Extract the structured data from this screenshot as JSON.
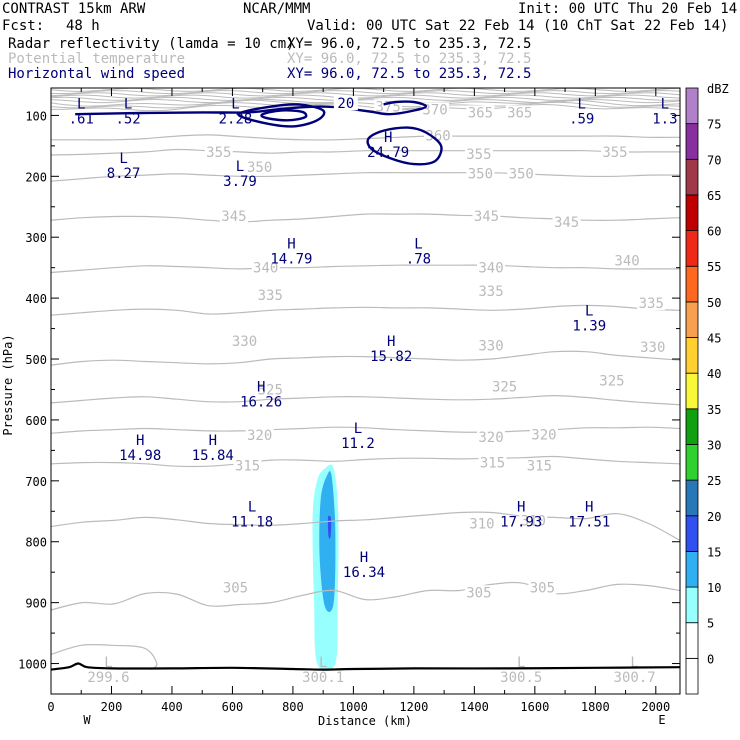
{
  "header": {
    "model": "CONTRAST 15km ARW",
    "org": "NCAR/MMM",
    "init": "Init: 00 UTC Thu 20 Feb 14",
    "fcst_label": "Fcst:",
    "fcst_value": "48 h",
    "valid": "Valid: 00 UTC Sat 22 Feb 14 (10 ChT Sat 22 Feb 14)",
    "line1_name": "Radar reflectivity (lamda = 10 cm)",
    "line1_xy": "XY=  96.0, 72.5 to 235.3, 72.5",
    "line2_name": "Potential temperature",
    "line2_xy": "XY=  96.0, 72.5 to 235.3, 72.5",
    "line3_name": "Horizontal wind speed",
    "line3_xy": "XY=  96.0, 72.5 to 235.3, 72.5",
    "colors": {
      "line1": "#000000",
      "line2": "#bbbbbb",
      "line3": "#00007a"
    }
  },
  "chart_data": {
    "type": "cross-section",
    "xlabel": "Distance (km)",
    "ylabel": "Pressure (hPa)",
    "xlim": [
      0,
      2080
    ],
    "ylim": [
      1050,
      55
    ],
    "x_ticks": [
      0,
      200,
      400,
      600,
      800,
      1000,
      1200,
      1400,
      1600,
      1800,
      2000
    ],
    "y_ticks": [
      100,
      200,
      300,
      400,
      500,
      600,
      700,
      800,
      900,
      1000
    ],
    "west_label": "W",
    "east_label": "E",
    "colorbar": {
      "unit": "dBZ",
      "levels": [
        "0",
        "5",
        "10",
        "15",
        "20",
        "25",
        "30",
        "35",
        "40",
        "45",
        "50",
        "55",
        "60",
        "65",
        "70",
        "75"
      ],
      "colors": [
        "#ffffff",
        "#98ffff",
        "#30b0f0",
        "#3050f0",
        "#2878b8",
        "#30d030",
        "#10a010",
        "#f8f838",
        "#ffd030",
        "#f8a050",
        "#ff6820",
        "#f02818",
        "#c00000",
        "#a03848",
        "#8830a0",
        "#b080c8"
      ]
    },
    "theta_contours": [
      {
        "value": 305,
        "p": [
          912,
          900,
          902,
          885,
          886,
          905,
          903,
          900,
          888,
          880,
          895,
          890,
          880,
          880,
          870,
          868,
          885,
          880,
          870,
          872,
          880
        ]
      },
      {
        "value": 310,
        "p": [
          775,
          768,
          765,
          760,
          764,
          770,
          772,
          773,
          770,
          766,
          764,
          760,
          756,
          752,
          752,
          758,
          760,
          762,
          754,
          770,
          798
        ]
      },
      {
        "value": 315,
        "p": [
          672,
          670,
          670,
          672,
          676,
          676,
          672,
          666,
          666,
          668,
          665,
          663,
          663,
          664,
          663,
          662,
          660,
          664,
          668,
          670,
          672
        ]
      },
      {
        "value": 320,
        "p": [
          622,
          618,
          616,
          614,
          616,
          618,
          618,
          616,
          614,
          612,
          613,
          616,
          618,
          620,
          620,
          618,
          616,
          613,
          613,
          612,
          614
        ]
      },
      {
        "value": 325,
        "p": [
          572,
          568,
          564,
          562,
          566,
          570,
          570,
          566,
          564,
          562,
          562,
          564,
          566,
          567,
          566,
          563,
          560,
          563,
          568,
          572,
          575
        ]
      },
      {
        "value": 330,
        "p": [
          510,
          504,
          502,
          504,
          506,
          508,
          506,
          500,
          498,
          496,
          496,
          498,
          500,
          502,
          500,
          494,
          488,
          488,
          494,
          498,
          502
        ]
      },
      {
        "value": 335,
        "p": [
          428,
          424,
          420,
          418,
          420,
          426,
          424,
          420,
          418,
          416,
          415,
          416,
          416,
          418,
          420,
          418,
          414,
          412,
          414,
          418,
          420
        ]
      },
      {
        "value": 340,
        "p": [
          358,
          354,
          350,
          347,
          348,
          350,
          352,
          350,
          350,
          348,
          347,
          346,
          346,
          346,
          346,
          348,
          350,
          350,
          352,
          352,
          352
        ]
      },
      {
        "value": 345,
        "p": [
          272,
          268,
          266,
          266,
          268,
          272,
          275,
          272,
          270,
          266,
          262,
          262,
          262,
          264,
          265,
          268,
          270,
          272,
          272,
          270,
          268
        ]
      },
      {
        "value": 350,
        "p": [
          208,
          204,
          200,
          198,
          196,
          198,
          200,
          200,
          198,
          196,
          194,
          194,
          194,
          194,
          194,
          196,
          198,
          200,
          200,
          198,
          198
        ]
      },
      {
        "value": 355,
        "p": [
          165,
          164,
          162,
          160,
          156,
          158,
          160,
          162,
          160,
          160,
          158,
          158,
          158,
          158,
          158,
          158,
          158,
          158,
          160,
          160,
          160
        ]
      },
      {
        "value": 360,
        "p": [
          140,
          140,
          140,
          138,
          134,
          132,
          135,
          138,
          140,
          140,
          138,
          136,
          134,
          134,
          134,
          134,
          134,
          134,
          134,
          136,
          136
        ]
      }
    ],
    "theta_labels": [
      {
        "v": "375",
        "x": 1115,
        "p": 85
      },
      {
        "v": "370",
        "x": 1270,
        "p": 90
      },
      {
        "v": "365",
        "x": 1420,
        "p": 95
      },
      {
        "v": "365",
        "x": 1550,
        "p": 95
      },
      {
        "v": "360",
        "x": 1280,
        "p": 133
      },
      {
        "v": "355",
        "x": 555,
        "p": 160
      },
      {
        "v": "355",
        "x": 1415,
        "p": 163
      },
      {
        "v": "355",
        "x": 1865,
        "p": 160
      },
      {
        "v": "350",
        "x": 690,
        "p": 185
      },
      {
        "v": "350",
        "x": 1420,
        "p": 195
      },
      {
        "v": "350",
        "x": 1555,
        "p": 195
      },
      {
        "v": "345",
        "x": 605,
        "p": 265
      },
      {
        "v": "345",
        "x": 1440,
        "p": 265
      },
      {
        "v": "345",
        "x": 1705,
        "p": 275
      },
      {
        "v": "340",
        "x": 710,
        "p": 350
      },
      {
        "v": "340",
        "x": 1455,
        "p": 350
      },
      {
        "v": "340",
        "x": 1905,
        "p": 338
      },
      {
        "v": "335",
        "x": 725,
        "p": 395
      },
      {
        "v": "335",
        "x": 1455,
        "p": 388
      },
      {
        "v": "335",
        "x": 1985,
        "p": 408
      },
      {
        "v": "330",
        "x": 640,
        "p": 470
      },
      {
        "v": "330",
        "x": 1455,
        "p": 478
      },
      {
        "v": "330",
        "x": 1990,
        "p": 480
      },
      {
        "v": "325",
        "x": 725,
        "p": 550
      },
      {
        "v": "325",
        "x": 1500,
        "p": 545
      },
      {
        "v": "325",
        "x": 1855,
        "p": 535
      },
      {
        "v": "320",
        "x": 690,
        "p": 625
      },
      {
        "v": "320",
        "x": 1455,
        "p": 628
      },
      {
        "v": "320",
        "x": 1630,
        "p": 624
      },
      {
        "v": "315",
        "x": 650,
        "p": 675
      },
      {
        "v": "315",
        "x": 1460,
        "p": 670
      },
      {
        "v": "315",
        "x": 1615,
        "p": 675
      },
      {
        "v": "310",
        "x": 1425,
        "p": 770
      },
      {
        "v": "310",
        "x": 1595,
        "p": 765
      },
      {
        "v": "305",
        "x": 610,
        "p": 875
      },
      {
        "v": "305",
        "x": 1415,
        "p": 883
      },
      {
        "v": "305",
        "x": 1625,
        "p": 875
      }
    ],
    "wind_contour_labels": [
      {
        "v": "20",
        "x": 975,
        "p": 80
      }
    ],
    "wind_extrema": [
      {
        "type": "L",
        "value": ".61",
        "x": 100,
        "p": 95
      },
      {
        "type": "L",
        "value": ".52",
        "x": 255,
        "p": 95
      },
      {
        "type": "L",
        "value": "2.28",
        "x": 610,
        "p": 95
      },
      {
        "type": "L",
        "value": ".59",
        "x": 1755,
        "p": 95
      },
      {
        "type": "L",
        "value": "1.3",
        "x": 2030,
        "p": 95
      },
      {
        "type": "H",
        "value": "24.79",
        "x": 1115,
        "p": 150
      },
      {
        "type": "L",
        "value": "8.27",
        "x": 240,
        "p": 185
      },
      {
        "type": "L",
        "value": "3.79",
        "x": 625,
        "p": 198
      },
      {
        "type": "H",
        "value": "14.79",
        "x": 795,
        "p": 325
      },
      {
        "type": "L",
        "value": ".78",
        "x": 1215,
        "p": 325
      },
      {
        "type": "L",
        "value": "1.39",
        "x": 1780,
        "p": 435
      },
      {
        "type": "H",
        "value": "15.82",
        "x": 1125,
        "p": 485
      },
      {
        "type": "H",
        "value": "16.26",
        "x": 695,
        "p": 560
      },
      {
        "type": "L",
        "value": "11.2",
        "x": 1015,
        "p": 628
      },
      {
        "type": "H",
        "value": "14.98",
        "x": 295,
        "p": 648
      },
      {
        "type": "H",
        "value": "15.84",
        "x": 535,
        "p": 648
      },
      {
        "type": "L",
        "value": "11.18",
        "x": 665,
        "p": 757
      },
      {
        "type": "H",
        "value": "17.93",
        "x": 1555,
        "p": 757
      },
      {
        "type": "H",
        "value": "17.51",
        "x": 1780,
        "p": 757
      },
      {
        "type": "H",
        "value": "16.34",
        "x": 1035,
        "p": 840
      }
    ],
    "theta_extrema": [
      {
        "type": "L",
        "value": "299.6",
        "x": 190,
        "p": 1012
      },
      {
        "type": "L",
        "value": "300.1",
        "x": 900,
        "p": 1012
      },
      {
        "type": "L",
        "value": "300.5",
        "x": 1555,
        "p": 1012
      },
      {
        "type": "L",
        "value": "300.7",
        "x": 1930,
        "p": 1012
      }
    ],
    "wind_contours": [
      {
        "value": 20,
        "closed": false,
        "points": [
          [
            80,
            98
          ],
          [
            300,
            96
          ],
          [
            500,
            95
          ],
          [
            650,
            95
          ],
          [
            750,
            90
          ],
          [
            850,
            86
          ],
          [
            930,
            86
          ],
          [
            1000,
            90
          ],
          [
            1060,
            94
          ],
          [
            1120,
            98
          ],
          [
            1200,
            92
          ],
          [
            1240,
            85
          ],
          [
            1200,
            78
          ],
          [
            1140,
            78
          ],
          [
            1100,
            82
          ]
        ]
      },
      {
        "value": 20,
        "closed": true,
        "points": [
          [
            1050,
            138
          ],
          [
            1100,
            125
          ],
          [
            1180,
            120
          ],
          [
            1240,
            128
          ],
          [
            1290,
            150
          ],
          [
            1270,
            175
          ],
          [
            1200,
            180
          ],
          [
            1120,
            170
          ],
          [
            1060,
            155
          ]
        ]
      },
      {
        "value": 20,
        "closed": true,
        "points": [
          [
            620,
            98
          ],
          [
            720,
            86
          ],
          [
            820,
            82
          ],
          [
            900,
            92
          ],
          [
            880,
            108
          ],
          [
            800,
            118
          ],
          [
            700,
            112
          ]
        ]
      },
      {
        "value": 20,
        "closed": true,
        "points": [
          [
            700,
            98
          ],
          [
            760,
            92
          ],
          [
            830,
            94
          ],
          [
            840,
            103
          ],
          [
            780,
            108
          ],
          [
            710,
            104
          ]
        ]
      }
    ],
    "reflectivity": [
      {
        "level": "5",
        "color": "#98ffff",
        "x": [
          860,
          960
        ],
        "points": [
          [
            905,
            680
          ],
          [
            935,
            680
          ],
          [
            950,
            760
          ],
          [
            948,
            900
          ],
          [
            940,
            1000
          ],
          [
            880,
            1000
          ],
          [
            870,
            900
          ],
          [
            865,
            760
          ],
          [
            880,
            700
          ]
        ]
      },
      {
        "level": "10",
        "color": "#30b0f0",
        "x": [
          880,
          940
        ],
        "points": [
          [
            912,
            692
          ],
          [
            928,
            692
          ],
          [
            940,
            780
          ],
          [
            935,
            900
          ],
          [
            905,
            905
          ],
          [
            888,
            820
          ],
          [
            892,
            730
          ]
        ]
      },
      {
        "level": "15",
        "color": "#3050f0",
        "x": [
          905,
          930
        ],
        "points": [
          [
            916,
            760
          ],
          [
            926,
            762
          ],
          [
            925,
            790
          ],
          [
            918,
            792
          ]
        ]
      }
    ],
    "ground": [
      [
        0,
        1010
      ],
      [
        60,
        1006
      ],
      [
        90,
        1000
      ],
      [
        120,
        1006
      ],
      [
        200,
        1008
      ],
      [
        400,
        1008
      ],
      [
        600,
        1007
      ],
      [
        800,
        1009
      ],
      [
        900,
        1010
      ],
      [
        1000,
        1009
      ],
      [
        1200,
        1008
      ],
      [
        1500,
        1008
      ],
      [
        1800,
        1007
      ],
      [
        2080,
        1006
      ]
    ],
    "low_contour": [
      [
        0,
        985
      ],
      [
        100,
        970
      ],
      [
        200,
        970
      ],
      [
        310,
        975
      ],
      [
        350,
        1000
      ],
      [
        330,
        1010
      ]
    ]
  }
}
